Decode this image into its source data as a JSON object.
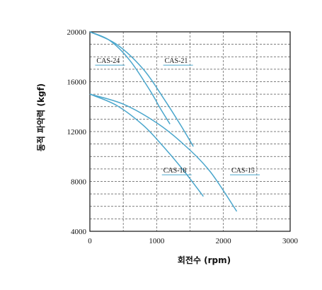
{
  "chart_data": {
    "type": "line",
    "xlabel": "회전수 (rpm)",
    "ylabel": "동적 파악력 (kgf)",
    "xlim": [
      0,
      3000
    ],
    "ylim": [
      4000,
      20000
    ],
    "xticks": [
      "0",
      "1000",
      "2000",
      "3000"
    ],
    "yticks": [
      "4000",
      "8000",
      "12000",
      "16000",
      "20000"
    ],
    "grid": "dashed",
    "series": [
      {
        "name": "CAS-24",
        "x": [
          0,
          300,
          600,
          900,
          1050,
          1200
        ],
        "y": [
          20000,
          19300,
          17700,
          15300,
          13900,
          12600
        ]
      },
      {
        "name": "CAS-21",
        "x": [
          0,
          400,
          800,
          1100,
          1350,
          1550
        ],
        "y": [
          20000,
          19000,
          17000,
          14700,
          12600,
          10800
        ]
      },
      {
        "name": "CAS-18",
        "x": [
          0,
          400,
          800,
          1100,
          1400,
          1700
        ],
        "y": [
          15000,
          14100,
          12500,
          10800,
          8900,
          6800
        ]
      },
      {
        "name": "CAS-15",
        "x": [
          0,
          500,
          1000,
          1400,
          1800,
          2200
        ],
        "y": [
          15000,
          14200,
          12700,
          11000,
          8800,
          5600
        ]
      }
    ],
    "labels": [
      {
        "text": "CAS-24",
        "x": 100,
        "y": 17500
      },
      {
        "text": "CAS-21",
        "x": 1120,
        "y": 17500
      },
      {
        "text": "CAS-18",
        "x": 1100,
        "y": 8700
      },
      {
        "text": "CAS-15",
        "x": 2120,
        "y": 8700
      }
    ]
  },
  "colors": {
    "curve": "#4aa6cc",
    "axis": "#111111",
    "grid": "#555555"
  }
}
